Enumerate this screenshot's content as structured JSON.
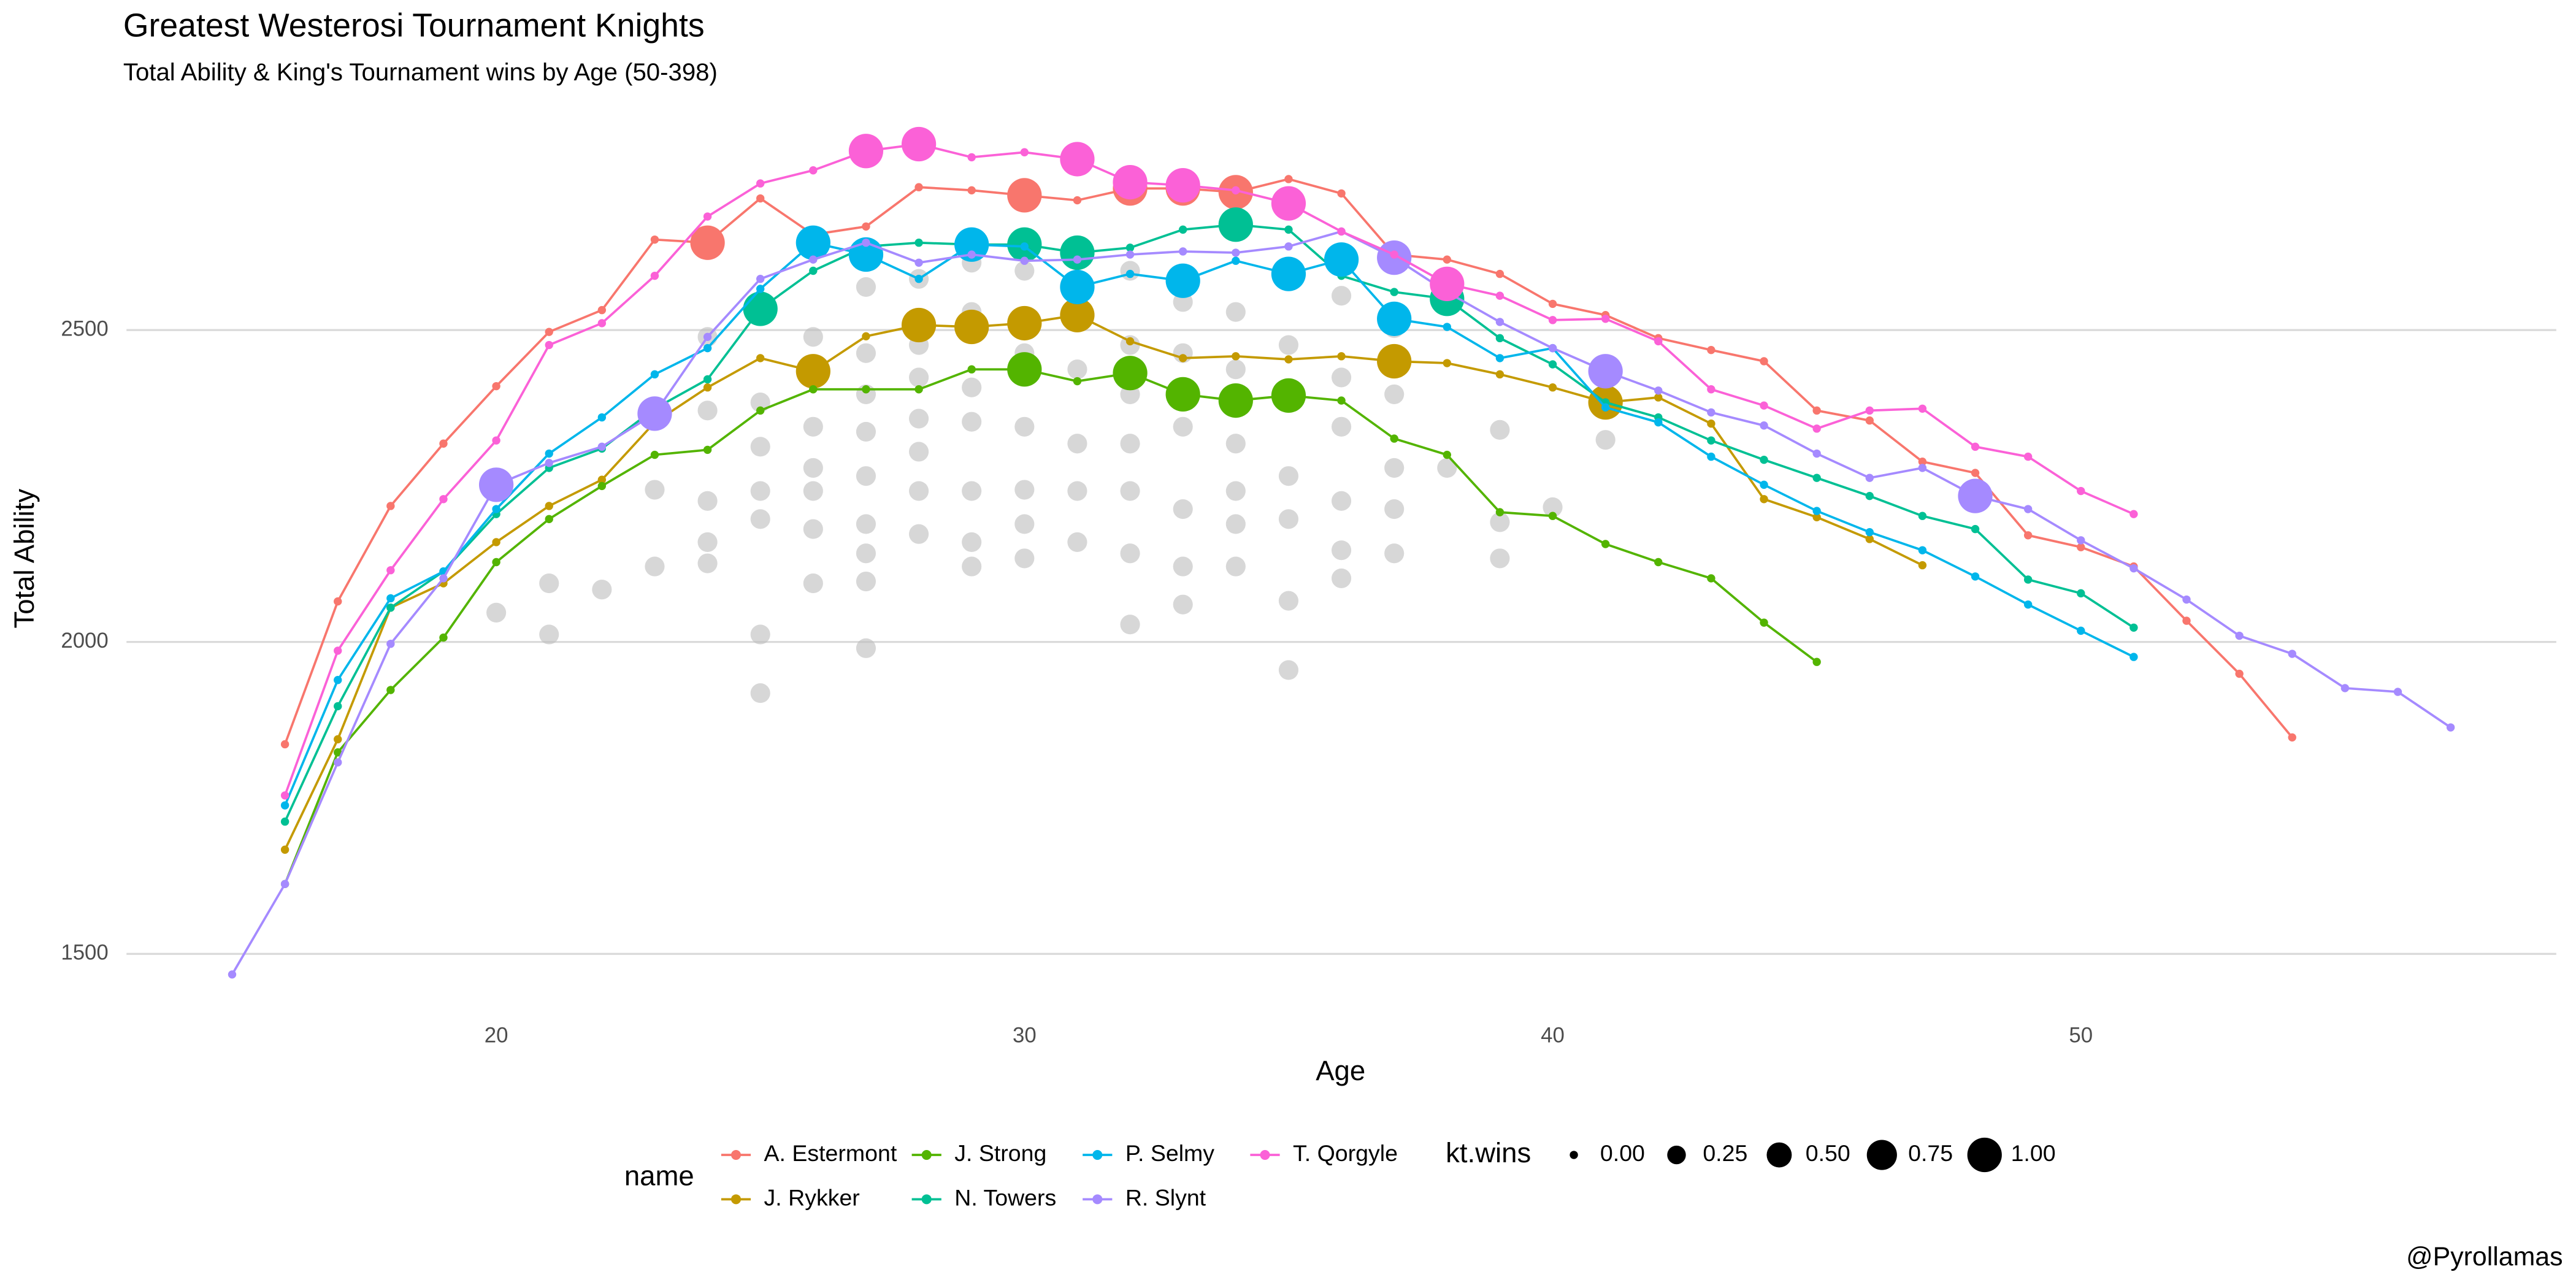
{
  "chart_data": {
    "type": "line",
    "title": "Greatest Westerosi Tournament Knights",
    "subtitle": "Total Ability & King's Tournament wins by Age (50-398)",
    "x_label": "Age",
    "y_label": "Total Ability",
    "xlim": [
      13,
      59
    ],
    "ylim": [
      1420,
      2850
    ],
    "xticks": [
      20,
      30,
      40,
      50
    ],
    "yticks": [
      1500,
      2000,
      2500
    ],
    "grid": "y",
    "legend_title": "name",
    "size_title": "kt.wins",
    "size_breaks": [
      {
        "value": 0,
        "label": "0.00"
      },
      {
        "value": 0.25,
        "label": "0.25"
      },
      {
        "value": 0.5,
        "label": "0.50"
      },
      {
        "value": 0.75,
        "label": "0.75"
      },
      {
        "value": 1,
        "label": "1.00"
      }
    ],
    "caption": "@Pyrollamas",
    "background": {
      "color": "#bdbdbd",
      "x": [
        20,
        21,
        21,
        22,
        23,
        23,
        24,
        24,
        24,
        24,
        24,
        25,
        25,
        25,
        25,
        25,
        25,
        26,
        26,
        26,
        26,
        26,
        26,
        26,
        27,
        27,
        27,
        27,
        27,
        27,
        27,
        27,
        27,
        28,
        28,
        28,
        28,
        28,
        28,
        28,
        29,
        29,
        29,
        29,
        29,
        29,
        29,
        30,
        30,
        30,
        30,
        30,
        30,
        31,
        31,
        31,
        31,
        31,
        32,
        32,
        32,
        32,
        32,
        32,
        32,
        33,
        33,
        33,
        33,
        33,
        33,
        34,
        34,
        34,
        34,
        34,
        34,
        35,
        35,
        35,
        35,
        35,
        35,
        36,
        36,
        36,
        36,
        36,
        36,
        37,
        37,
        37,
        37,
        37,
        38,
        39,
        39,
        39,
        40,
        41
      ],
      "y": [
        2047,
        2094,
        2012,
        2084,
        2244,
        2121,
        2489,
        2371,
        2226,
        2160,
        2126,
        2384,
        2313,
        2242,
        2197,
        2012,
        1918,
        2489,
        2424,
        2345,
        2279,
        2242,
        2181,
        2094,
        2569,
        2463,
        2397,
        2337,
        2266,
        2189,
        2142,
        2097,
        1990,
        2582,
        2476,
        2424,
        2358,
        2305,
        2242,
        2173,
        2608,
        2529,
        2408,
        2353,
        2242,
        2160,
        2121,
        2595,
        2463,
        2345,
        2244,
        2189,
        2134,
        2542,
        2437,
        2318,
        2242,
        2160,
        2595,
        2476,
        2397,
        2318,
        2242,
        2142,
        2028,
        2545,
        2463,
        2345,
        2213,
        2121,
        2060,
        2529,
        2437,
        2318,
        2242,
        2189,
        2121,
        2476,
        2384,
        2266,
        2197,
        2066,
        1955,
        2555,
        2424,
        2345,
        2226,
        2147,
        2102,
        2503,
        2397,
        2279,
        2213,
        2142,
        2279,
        2340,
        2192,
        2134,
        2216,
        2324
      ]
    },
    "series": [
      {
        "name": "A. Estermont",
        "color": "#F8766D",
        "x": [
          16,
          17,
          18,
          19,
          20,
          21,
          22,
          23,
          24,
          25,
          26,
          27,
          28,
          29,
          30,
          31,
          32,
          33,
          34,
          35,
          36,
          37,
          38,
          39,
          40,
          41,
          42,
          43,
          44,
          45,
          46,
          47,
          48,
          49,
          50,
          51,
          52,
          53,
          54
        ],
        "values": [
          1836,
          2065,
          2218,
          2318,
          2410,
          2497,
          2532,
          2645,
          2640,
          2711,
          2653,
          2666,
          2729,
          2724,
          2716,
          2708,
          2727,
          2727,
          2721,
          2742,
          2719,
          2621,
          2613,
          2590,
          2542,
          2524,
          2487,
          2468,
          2450,
          2371,
          2355,
          2289,
          2271,
          2171,
          2152,
          2121,
          2034,
          1949,
          1847
        ],
        "sizes": [
          0,
          0,
          0,
          0,
          0,
          0,
          0,
          0,
          1,
          0,
          0,
          0,
          0,
          0,
          1,
          0,
          1,
          1,
          1,
          0,
          0,
          0,
          0,
          0,
          0,
          0,
          0,
          0,
          0,
          0,
          0,
          0,
          0,
          0,
          0,
          0,
          0,
          0,
          0
        ]
      },
      {
        "name": "J. Rykker",
        "color": "#C49A00",
        "x": [
          16,
          17,
          18,
          19,
          20,
          21,
          22,
          23,
          24,
          25,
          26,
          27,
          28,
          29,
          30,
          31,
          32,
          33,
          34,
          35,
          36,
          37,
          38,
          39,
          40,
          41,
          42,
          43,
          44,
          45,
          46,
          47
        ],
        "values": [
          1667,
          1844,
          2055,
          2094,
          2160,
          2218,
          2260,
          2352,
          2408,
          2455,
          2434,
          2490,
          2508,
          2505,
          2511,
          2524,
          2482,
          2455,
          2458,
          2453,
          2458,
          2450,
          2447,
          2429,
          2408,
          2384,
          2392,
          2350,
          2229,
          2200,
          2165,
          2123
        ],
        "sizes": [
          0,
          0,
          0,
          0,
          0,
          0,
          0,
          0,
          0,
          0,
          1,
          0,
          1,
          1,
          1,
          1,
          0,
          0,
          0,
          0,
          0,
          1,
          0,
          0,
          0,
          1,
          0,
          0,
          0,
          0,
          0,
          0
        ]
      },
      {
        "name": "J. Strong",
        "color": "#53B400",
        "x": [
          16,
          17,
          18,
          19,
          20,
          21,
          22,
          23,
          24,
          25,
          26,
          27,
          28,
          29,
          30,
          31,
          32,
          33,
          34,
          35,
          36,
          37,
          38,
          39,
          40,
          41,
          42,
          43,
          44,
          45
        ],
        "values": [
          1612,
          1823,
          1923,
          2007,
          2128,
          2197,
          2250,
          2300,
          2308,
          2371,
          2405,
          2405,
          2405,
          2437,
          2437,
          2418,
          2431,
          2397,
          2387,
          2395,
          2387,
          2326,
          2300,
          2208,
          2202,
          2157,
          2128,
          2102,
          2031,
          1968
        ],
        "sizes": [
          0,
          0,
          0,
          0,
          0,
          0,
          0,
          0,
          0,
          0,
          0,
          0,
          0,
          0,
          1,
          0,
          1,
          1,
          1,
          1,
          0,
          0,
          0,
          0,
          0,
          0,
          0,
          0,
          0,
          0
        ]
      },
      {
        "name": "N. Towers",
        "color": "#00C094",
        "x": [
          16,
          17,
          18,
          19,
          20,
          21,
          22,
          23,
          24,
          25,
          26,
          27,
          28,
          29,
          30,
          31,
          32,
          33,
          34,
          35,
          36,
          37,
          38,
          39,
          40,
          41,
          42,
          43,
          44,
          45,
          46,
          47,
          48,
          49,
          50,
          51
        ],
        "values": [
          1712,
          1897,
          2055,
          2113,
          2205,
          2279,
          2310,
          2374,
          2421,
          2534,
          2595,
          2634,
          2640,
          2637,
          2637,
          2624,
          2632,
          2661,
          2669,
          2661,
          2587,
          2561,
          2550,
          2487,
          2445,
          2384,
          2360,
          2323,
          2292,
          2263,
          2234,
          2202,
          2181,
          2100,
          2078,
          2023
        ],
        "sizes": [
          0,
          0,
          0,
          0,
          0,
          0,
          0,
          0,
          0,
          1,
          0,
          0,
          0,
          0,
          1,
          1,
          0,
          0,
          1,
          0,
          0,
          0,
          1,
          0,
          0,
          0,
          0,
          0,
          0,
          0,
          0,
          0,
          0,
          0,
          0,
          0
        ]
      },
      {
        "name": "P. Selmy",
        "color": "#00B6EB",
        "x": [
          16,
          17,
          18,
          19,
          20,
          21,
          22,
          23,
          24,
          25,
          26,
          27,
          28,
          29,
          30,
          31,
          32,
          33,
          34,
          35,
          36,
          37,
          38,
          39,
          40,
          41,
          42,
          43,
          44,
          45,
          46,
          47,
          48,
          49,
          50,
          51
        ],
        "values": [
          1738,
          1939,
          2070,
          2113,
          2213,
          2302,
          2360,
          2429,
          2471,
          2566,
          2640,
          2621,
          2582,
          2637,
          2634,
          2569,
          2590,
          2579,
          2611,
          2590,
          2613,
          2518,
          2505,
          2455,
          2471,
          2376,
          2352,
          2297,
          2252,
          2210,
          2176,
          2147,
          2105,
          2060,
          2018,
          1976
        ],
        "sizes": [
          0,
          0,
          0,
          0,
          0,
          0,
          0,
          0,
          0,
          0,
          1,
          1,
          0,
          1,
          0,
          1,
          0,
          1,
          0,
          1,
          1,
          1,
          0,
          0,
          0,
          0,
          0,
          0,
          0,
          0,
          0,
          0,
          0,
          0,
          0,
          0
        ]
      },
      {
        "name": "R. Slynt",
        "color": "#A58AFF",
        "x": [
          15,
          16,
          17,
          18,
          19,
          20,
          21,
          22,
          23,
          24,
          25,
          26,
          27,
          28,
          29,
          30,
          31,
          32,
          33,
          34,
          35,
          36,
          37,
          38,
          39,
          40,
          41,
          42,
          43,
          44,
          45,
          46,
          47,
          48,
          49,
          50,
          51,
          52,
          53,
          54,
          55,
          56,
          57
        ],
        "values": [
          1467,
          1612,
          1807,
          1997,
          2102,
          2252,
          2287,
          2313,
          2366,
          2489,
          2582,
          2613,
          2640,
          2608,
          2621,
          2611,
          2613,
          2621,
          2626,
          2624,
          2634,
          2658,
          2616,
          2561,
          2513,
          2471,
          2434,
          2403,
          2368,
          2347,
          2302,
          2263,
          2279,
          2234,
          2213,
          2163,
          2118,
          2068,
          2010,
          1981,
          1926,
          1920,
          1863
        ],
        "sizes": [
          0,
          0,
          0,
          0,
          0,
          1,
          0,
          0,
          1,
          0,
          0,
          0,
          0,
          0,
          0,
          0,
          0,
          0,
          0,
          0,
          0,
          0,
          1,
          0,
          0,
          0,
          1,
          0,
          0,
          0,
          0,
          0,
          0,
          1,
          0,
          0,
          0,
          0,
          0,
          0,
          0,
          0,
          0
        ]
      },
      {
        "name": "T. Qorgyle",
        "color": "#FB61D7",
        "x": [
          16,
          17,
          18,
          19,
          20,
          21,
          22,
          23,
          24,
          25,
          26,
          27,
          28,
          29,
          30,
          31,
          32,
          33,
          34,
          35,
          36,
          37,
          38,
          39,
          40,
          41,
          42,
          43,
          44,
          45,
          46,
          47,
          48,
          49,
          50,
          51
        ],
        "values": [
          1754,
          1986,
          2115,
          2229,
          2323,
          2476,
          2511,
          2587,
          2682,
          2735,
          2756,
          2787,
          2798,
          2777,
          2785,
          2774,
          2737,
          2732,
          2724,
          2703,
          2658,
          2621,
          2574,
          2555,
          2516,
          2518,
          2482,
          2405,
          2379,
          2342,
          2371,
          2374,
          2313,
          2297,
          2242,
          2205
        ],
        "sizes": [
          0,
          0,
          0,
          0,
          0,
          0,
          0,
          0,
          0,
          0,
          0,
          1,
          1,
          0,
          0,
          1,
          1,
          1,
          0,
          1,
          0,
          0,
          1,
          0,
          0,
          0,
          0,
          0,
          0,
          0,
          0,
          0,
          0,
          0,
          0,
          0
        ]
      }
    ]
  }
}
